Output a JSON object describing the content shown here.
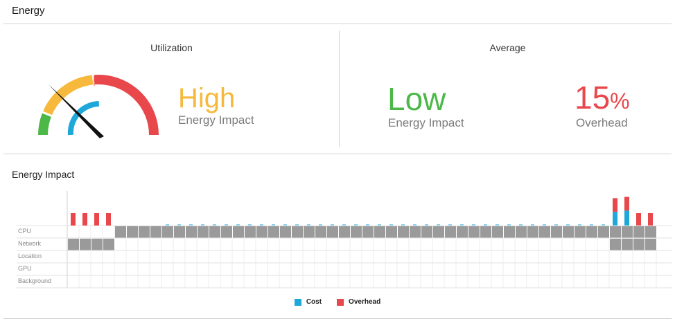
{
  "header": {
    "title": "Energy"
  },
  "utilization": {
    "title": "Utilization",
    "level": "High",
    "level_label": "Energy Impact",
    "level_color": "#f6b93b"
  },
  "average": {
    "title": "Average",
    "impact_level": "Low",
    "impact_label": "Energy Impact",
    "impact_color": "#4cb848",
    "overhead_value": "15",
    "overhead_unit": "%",
    "overhead_label": "Overhead",
    "overhead_color": "#e8474c"
  },
  "gauge": {
    "needle_icon": "needle",
    "zone_colors": [
      "#4cb848",
      "#f6b93b",
      "#e8474c"
    ],
    "inner_arc_color": "#1ea7d9"
  },
  "energy_impact": {
    "title": "Energy Impact",
    "row_labels": [
      "CPU",
      "Network",
      "Location",
      "GPU",
      "Background"
    ],
    "cell_count": 50,
    "active_color": "#9a9a9a",
    "cost_color": "#1ea7d9",
    "overhead_color": "#e8474c",
    "cpu_active_from": 4,
    "cpu_active_to": 49,
    "network_active": [
      0,
      1,
      2,
      3,
      46,
      47,
      48,
      49
    ],
    "bars": [
      {
        "cell": 0,
        "cost": 0,
        "overhead": 1
      },
      {
        "cell": 1,
        "cost": 0,
        "overhead": 1
      },
      {
        "cell": 2,
        "cost": 0,
        "overhead": 1
      },
      {
        "cell": 3,
        "cost": 0,
        "overhead": 1
      },
      {
        "cell": 46,
        "cost": 1.1,
        "overhead": 1.1
      },
      {
        "cell": 47,
        "cost": 1.2,
        "overhead": 1.1
      },
      {
        "cell": 48,
        "cost": 0,
        "overhead": 1
      },
      {
        "cell": 49,
        "cost": 0,
        "overhead": 1
      }
    ],
    "legend": [
      {
        "label": "Cost",
        "color": "#1ea7d9"
      },
      {
        "label": "Overhead",
        "color": "#e8474c"
      }
    ]
  }
}
